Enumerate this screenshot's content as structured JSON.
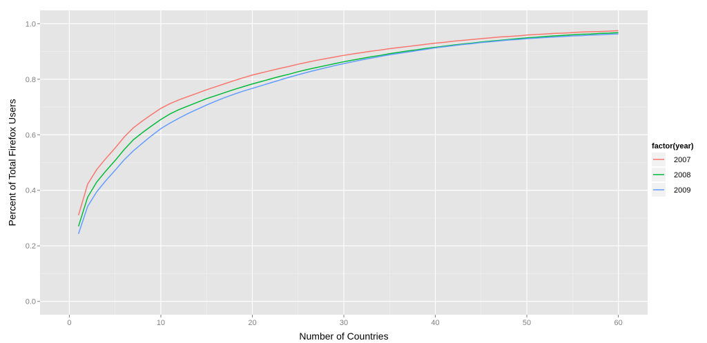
{
  "chart_data": {
    "type": "line",
    "title": "",
    "xlabel": "Number of Countries",
    "ylabel": "Percent of Total Firefox Users",
    "xlim": [
      -3.2,
      63.2
    ],
    "ylim": [
      -0.048,
      1.048
    ],
    "xticks": [
      0,
      10,
      20,
      30,
      40,
      50,
      60
    ],
    "xtick_labels": [
      "0",
      "10",
      "20",
      "30",
      "40",
      "50",
      "60"
    ],
    "yticks": [
      0.0,
      0.2,
      0.4,
      0.6,
      0.8,
      1.0
    ],
    "ytick_labels": [
      "0.0",
      "0.2",
      "0.4",
      "0.6",
      "0.8",
      "1.0"
    ],
    "grid": true,
    "legend": {
      "title": "factor(year)",
      "position": "right",
      "entries": [
        "2007",
        "2008",
        "2009"
      ]
    },
    "x": [
      1,
      2,
      3,
      4,
      5,
      6,
      7,
      8,
      9,
      10,
      11,
      12,
      13,
      14,
      15,
      16,
      17,
      18,
      19,
      20,
      21,
      22,
      23,
      24,
      25,
      26,
      27,
      28,
      29,
      30,
      31,
      32,
      33,
      34,
      35,
      36,
      37,
      38,
      39,
      40,
      41,
      42,
      43,
      44,
      45,
      46,
      47,
      48,
      49,
      50,
      51,
      52,
      53,
      54,
      55,
      56,
      57,
      58,
      59,
      60
    ],
    "series": [
      {
        "name": "2007",
        "color": "#F8766D",
        "values": [
          0.31,
          0.422,
          0.475,
          0.515,
          0.552,
          0.592,
          0.625,
          0.65,
          0.673,
          0.695,
          0.712,
          0.726,
          0.738,
          0.75,
          0.762,
          0.773,
          0.784,
          0.795,
          0.805,
          0.815,
          0.823,
          0.831,
          0.839,
          0.846,
          0.854,
          0.861,
          0.868,
          0.874,
          0.88,
          0.886,
          0.891,
          0.896,
          0.901,
          0.905,
          0.91,
          0.914,
          0.918,
          0.922,
          0.926,
          0.93,
          0.933,
          0.937,
          0.94,
          0.943,
          0.946,
          0.949,
          0.952,
          0.954,
          0.956,
          0.959,
          0.961,
          0.963,
          0.965,
          0.966,
          0.968,
          0.97,
          0.971,
          0.972,
          0.973,
          0.975
        ]
      },
      {
        "name": "2008",
        "color": "#00BA38",
        "values": [
          0.27,
          0.375,
          0.43,
          0.47,
          0.507,
          0.547,
          0.582,
          0.608,
          0.632,
          0.655,
          0.675,
          0.691,
          0.704,
          0.717,
          0.73,
          0.741,
          0.752,
          0.763,
          0.773,
          0.783,
          0.792,
          0.801,
          0.81,
          0.818,
          0.827,
          0.835,
          0.842,
          0.849,
          0.856,
          0.863,
          0.869,
          0.875,
          0.881,
          0.886,
          0.892,
          0.897,
          0.902,
          0.906,
          0.911,
          0.915,
          0.919,
          0.923,
          0.927,
          0.93,
          0.934,
          0.937,
          0.94,
          0.943,
          0.946,
          0.949,
          0.951,
          0.954,
          0.956,
          0.958,
          0.96,
          0.962,
          0.963,
          0.965,
          0.966,
          0.968
        ]
      },
      {
        "name": "2009",
        "color": "#619CFF",
        "values": [
          0.243,
          0.342,
          0.395,
          0.435,
          0.472,
          0.51,
          0.542,
          0.57,
          0.597,
          0.622,
          0.642,
          0.66,
          0.677,
          0.692,
          0.707,
          0.721,
          0.734,
          0.746,
          0.757,
          0.767,
          0.777,
          0.787,
          0.797,
          0.807,
          0.816,
          0.825,
          0.833,
          0.841,
          0.849,
          0.856,
          0.863,
          0.87,
          0.876,
          0.882,
          0.888,
          0.893,
          0.898,
          0.903,
          0.908,
          0.913,
          0.917,
          0.921,
          0.925,
          0.928,
          0.932,
          0.935,
          0.938,
          0.941,
          0.943,
          0.946,
          0.948,
          0.95,
          0.952,
          0.954,
          0.956,
          0.957,
          0.959,
          0.96,
          0.962,
          0.963
        ]
      }
    ]
  }
}
